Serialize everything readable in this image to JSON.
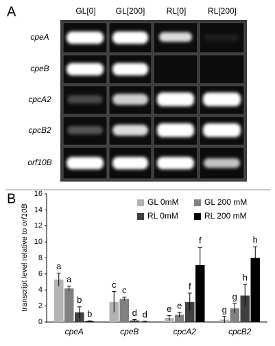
{
  "panel_a": {
    "label": "A",
    "columns": [
      "GL[0]",
      "GL[200]",
      "RL[0]",
      "RL[200]"
    ],
    "rows": [
      "cpeA",
      "cpeB",
      "cpcA2",
      "cpcB2",
      "orf10B"
    ]
  },
  "panel_b_label": "B",
  "chart_data": {
    "type": "bar",
    "ylabel": "transcript level relative to",
    "ylabel_gene": "orf10B",
    "categories": [
      "cpeA",
      "cpeB",
      "cpcA2",
      "cpcB2"
    ],
    "series": [
      {
        "name": "GL 0mM",
        "color": "#b3b3b3",
        "values": [
          5.3,
          2.5,
          0.5,
          0.3
        ],
        "errors": [
          0.8,
          1.3,
          0.3,
          0.4
        ],
        "letters": [
          "a",
          "c",
          "e",
          "g"
        ]
      },
      {
        "name": "GL 200 mM",
        "color": "#808080",
        "values": [
          4.2,
          2.9,
          0.9,
          1.7
        ],
        "errors": [
          0.3,
          0.2,
          0.3,
          0.6
        ],
        "letters": [
          "a",
          "c",
          "e",
          "g"
        ]
      },
      {
        "name": "RL 0mM",
        "color": "#404040",
        "values": [
          1.2,
          0.2,
          2.5,
          3.3
        ],
        "errors": [
          0.7,
          0.1,
          1.1,
          1.4
        ],
        "letters": [
          "b",
          "d",
          "f",
          "h"
        ]
      },
      {
        "name": "RL 200 mM",
        "color": "#000000",
        "values": [
          0.1,
          0.05,
          7.1,
          8.0
        ],
        "errors": [
          0.05,
          0.05,
          2.2,
          1.4
        ],
        "letters": [
          "b",
          "d",
          "f",
          "h"
        ]
      }
    ],
    "ylim": [
      0,
      16
    ],
    "yticks": [
      0,
      2,
      4,
      6,
      8,
      10,
      12,
      14,
      16
    ],
    "legend": "upper right"
  }
}
